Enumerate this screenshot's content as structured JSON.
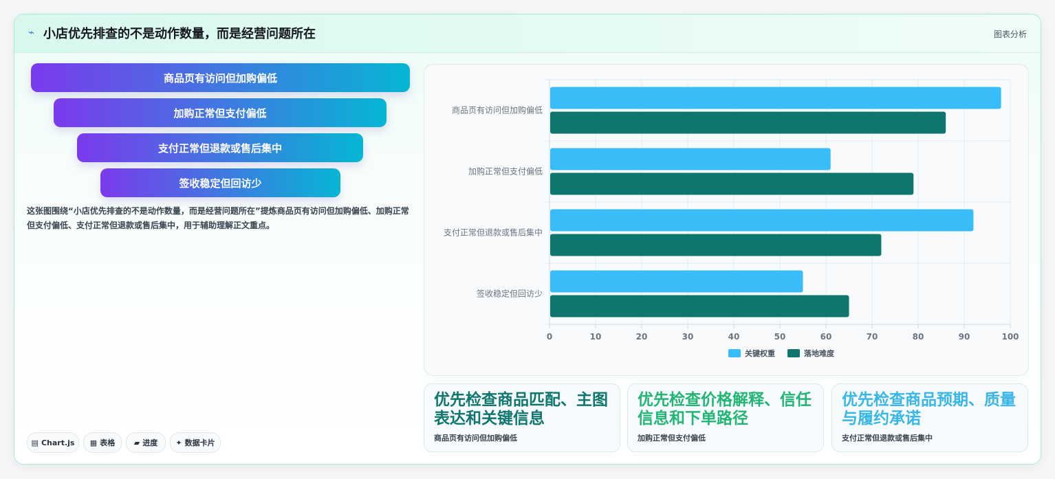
{
  "header": {
    "icon": "trend-icon",
    "title": "小店优先排查的不是动作数量，而是经营问题所在",
    "tag": "图表分析"
  },
  "funnel": [
    {
      "label": "商品页有访问但加购偏低"
    },
    {
      "label": "加购正常但支付偏低"
    },
    {
      "label": "支付正常但退款或售后集中"
    },
    {
      "label": "签收稳定但回访少"
    }
  ],
  "description": "这张图围绕“小店优先排查的不是动作数量，而是经营问题所在”提炼商品页有访问但加购偏低、加购正常但支付偏低、支付正常但退款或售后集中，用于辅助理解正文重点。",
  "chips": [
    {
      "icon": "chart-icon",
      "label": "Chart.js"
    },
    {
      "icon": "table-icon",
      "label": "表格"
    },
    {
      "icon": "progress-icon",
      "label": "进度"
    },
    {
      "icon": "sparkle-icon",
      "label": "数据卡片"
    }
  ],
  "chart_data": {
    "type": "bar",
    "orientation": "horizontal",
    "categories": [
      "商品页有访问但加购偏低",
      "加购正常但支付偏低",
      "支付正常但退款或售后集中",
      "签收稳定但回访少"
    ],
    "series": [
      {
        "name": "关键权重",
        "color": "#38bdf8",
        "values": [
          98,
          61,
          92,
          55
        ]
      },
      {
        "name": "落地难度",
        "color": "#0f766e",
        "values": [
          86,
          79,
          72,
          65
        ]
      }
    ],
    "xlim": [
      0,
      100
    ],
    "xticks": [
      0,
      10,
      20,
      30,
      40,
      50,
      60,
      70,
      80,
      90,
      100
    ],
    "grid": true,
    "legend": "bottom"
  },
  "kpis": [
    {
      "headline": "优先检查商品匹配、主图表达和关键信息",
      "sub": "商品页有访问但加购偏低",
      "color": "#0f766e"
    },
    {
      "headline": "优先检查价格解释、信任信息和下单路径",
      "sub": "加购正常但支付偏低",
      "color": "#22b573"
    },
    {
      "headline": "优先检查商品预期、质量与履约承诺",
      "sub": "支付正常但退款或售后集中",
      "color": "#38b6e8"
    }
  ]
}
